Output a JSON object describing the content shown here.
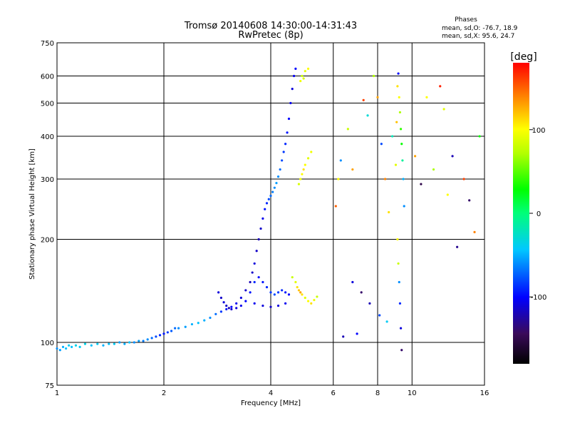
{
  "chart_data": {
    "type": "scatter",
    "title": "Tromsø 20140608 14:30:00-14:31:43",
    "subtitle": "RwPretec (8p)",
    "xlabel": "Frequency [MHz]",
    "ylabel": "Stationary phase Virtual Height [km]",
    "x_scale": "log",
    "y_scale": "log",
    "xlim": [
      1,
      16
    ],
    "ylim": [
      75,
      750
    ],
    "x_ticks": [
      1,
      2,
      4,
      6,
      8,
      10,
      16
    ],
    "y_ticks": [
      75,
      100,
      200,
      300,
      400,
      500,
      600,
      750
    ],
    "grid": true,
    "phases_box": {
      "title": "Phases",
      "line1": "mean, sd,O: -76.7, 18.9",
      "line2": "mean, sd,X:  95.6, 24.7"
    },
    "colorbar": {
      "label": "[deg]",
      "range": [
        -180,
        180
      ],
      "ticks": [
        100,
        0,
        -100
      ],
      "tick_labels": [
        "100",
        "0",
        "-100"
      ]
    },
    "series": [
      {
        "points": [
          [
            1.0,
            96,
            -60
          ],
          [
            1.02,
            95,
            -55
          ],
          [
            1.04,
            97,
            -50
          ],
          [
            1.06,
            96,
            -45
          ],
          [
            1.08,
            98,
            -40
          ],
          [
            1.1,
            97,
            -45
          ],
          [
            1.13,
            98,
            -35
          ],
          [
            1.16,
            97,
            -40
          ],
          [
            1.2,
            99,
            -35
          ],
          [
            1.25,
            98,
            -45
          ],
          [
            1.3,
            99,
            -40
          ],
          [
            1.35,
            98,
            -50
          ],
          [
            1.4,
            99,
            -45
          ],
          [
            1.45,
            99,
            -40
          ],
          [
            1.5,
            100,
            -55
          ],
          [
            1.55,
            99,
            -50
          ],
          [
            1.6,
            100,
            -45
          ],
          [
            1.65,
            100,
            -60
          ],
          [
            1.7,
            101,
            -55
          ],
          [
            1.75,
            101,
            -65
          ],
          [
            1.8,
            102,
            -60
          ],
          [
            1.85,
            103,
            -70
          ],
          [
            1.9,
            104,
            -80
          ],
          [
            1.95,
            105,
            -90
          ],
          [
            2.0,
            106,
            -95
          ],
          [
            2.05,
            107,
            -85
          ],
          [
            2.1,
            108,
            -75
          ],
          [
            2.15,
            110,
            -70
          ],
          [
            2.2,
            110,
            -60
          ],
          [
            2.3,
            111,
            -55
          ],
          [
            2.4,
            113,
            -50
          ],
          [
            2.5,
            114,
            -45
          ],
          [
            2.6,
            116,
            -50
          ],
          [
            2.7,
            118,
            -60
          ],
          [
            2.8,
            121,
            -70
          ],
          [
            2.9,
            123,
            -85
          ],
          [
            3.0,
            125,
            -95
          ],
          [
            3.1,
            127,
            -100
          ],
          [
            3.2,
            130,
            -105
          ],
          [
            3.3,
            135,
            -110
          ],
          [
            3.4,
            142,
            -115
          ],
          [
            3.5,
            150,
            -120
          ],
          [
            3.55,
            160,
            -115
          ],
          [
            3.6,
            170,
            -110
          ],
          [
            3.65,
            185,
            -115
          ],
          [
            3.7,
            200,
            -120
          ],
          [
            3.75,
            215,
            -115
          ],
          [
            3.8,
            230,
            -105
          ],
          [
            3.85,
            245,
            -95
          ],
          [
            3.9,
            255,
            -90
          ],
          [
            3.95,
            262,
            -80
          ],
          [
            4.0,
            268,
            -70
          ],
          [
            4.05,
            275,
            -65
          ],
          [
            4.1,
            283,
            -60
          ],
          [
            4.15,
            292,
            -55
          ],
          [
            4.2,
            305,
            -60
          ],
          [
            4.25,
            320,
            -70
          ],
          [
            4.3,
            340,
            -80
          ],
          [
            4.35,
            360,
            -85
          ],
          [
            4.4,
            380,
            -90
          ],
          [
            4.45,
            410,
            -95
          ],
          [
            4.5,
            450,
            -100
          ],
          [
            4.55,
            500,
            -105
          ],
          [
            4.6,
            550,
            -110
          ],
          [
            4.65,
            600,
            -105
          ],
          [
            4.7,
            630,
            -100
          ]
        ]
      },
      {
        "points": [
          [
            2.85,
            140,
            -110
          ],
          [
            2.9,
            135,
            -115
          ],
          [
            2.95,
            131,
            -110
          ],
          [
            3.0,
            128,
            -115
          ],
          [
            3.05,
            126,
            -120
          ],
          [
            3.1,
            125,
            -115
          ],
          [
            3.2,
            126,
            -110
          ],
          [
            3.3,
            128,
            -105
          ],
          [
            3.4,
            132,
            -100
          ],
          [
            3.5,
            140,
            -95
          ],
          [
            3.6,
            150,
            -90
          ],
          [
            3.7,
            155,
            -100
          ],
          [
            3.8,
            150,
            -95
          ],
          [
            3.9,
            145,
            -90
          ],
          [
            4.0,
            140,
            -85
          ],
          [
            4.1,
            138,
            -80
          ],
          [
            4.2,
            140,
            -85
          ],
          [
            4.3,
            142,
            -90
          ],
          [
            4.4,
            140,
            -95
          ],
          [
            4.5,
            138,
            -100
          ],
          [
            3.6,
            130,
            -105
          ],
          [
            3.8,
            128,
            -110
          ],
          [
            4.0,
            127,
            -115
          ],
          [
            4.2,
            128,
            -110
          ],
          [
            4.4,
            130,
            -105
          ]
        ]
      },
      {
        "points": [
          [
            4.6,
            155,
            80
          ],
          [
            4.7,
            150,
            90
          ],
          [
            4.75,
            145,
            110
          ],
          [
            4.8,
            142,
            120
          ],
          [
            4.85,
            140,
            130
          ],
          [
            4.9,
            138,
            110
          ],
          [
            5.0,
            135,
            90
          ],
          [
            5.1,
            132,
            100
          ],
          [
            5.2,
            130,
            110
          ],
          [
            5.3,
            133,
            95
          ],
          [
            5.4,
            136,
            80
          ],
          [
            4.8,
            290,
            85
          ],
          [
            4.85,
            300,
            95
          ],
          [
            4.9,
            310,
            100
          ],
          [
            4.95,
            320,
            110
          ],
          [
            5.0,
            330,
            100
          ],
          [
            5.1,
            345,
            90
          ],
          [
            5.2,
            360,
            95
          ],
          [
            4.9,
            600,
            80
          ],
          [
            5.0,
            620,
            90
          ],
          [
            5.1,
            630,
            100
          ],
          [
            4.85,
            580,
            95
          ],
          [
            4.95,
            590,
            85
          ]
        ]
      },
      {
        "points": [
          [
            6.1,
            250,
            150
          ],
          [
            6.2,
            300,
            100
          ],
          [
            6.3,
            340,
            -60
          ],
          [
            6.4,
            104,
            -120
          ],
          [
            6.6,
            420,
            80
          ],
          [
            6.8,
            320,
            130
          ],
          [
            7.0,
            106,
            -100
          ],
          [
            7.3,
            510,
            160
          ],
          [
            7.5,
            460,
            -30
          ],
          [
            7.8,
            600,
            70
          ],
          [
            8.0,
            520,
            130
          ],
          [
            8.2,
            380,
            -80
          ],
          [
            8.4,
            300,
            140
          ],
          [
            8.6,
            240,
            110
          ],
          [
            8.8,
            400,
            -20
          ],
          [
            9.0,
            330,
            90
          ],
          [
            9.05,
            440,
            120
          ],
          [
            9.1,
            560,
            110
          ],
          [
            9.15,
            610,
            -100
          ],
          [
            9.2,
            520,
            100
          ],
          [
            9.25,
            470,
            70
          ],
          [
            9.3,
            420,
            40
          ],
          [
            9.35,
            380,
            30
          ],
          [
            9.4,
            340,
            -10
          ],
          [
            9.45,
            300,
            -50
          ],
          [
            9.5,
            250,
            -60
          ],
          [
            9.1,
            200,
            100
          ],
          [
            9.15,
            170,
            80
          ],
          [
            9.2,
            150,
            -60
          ],
          [
            9.25,
            130,
            -90
          ],
          [
            9.3,
            110,
            -110
          ],
          [
            9.35,
            95,
            -140
          ],
          [
            10.2,
            350,
            130
          ],
          [
            10.6,
            290,
            -150
          ],
          [
            11.0,
            520,
            100
          ],
          [
            11.5,
            320,
            70
          ],
          [
            12.0,
            560,
            170
          ],
          [
            12.3,
            480,
            90
          ],
          [
            12.6,
            270,
            100
          ],
          [
            13.0,
            350,
            -120
          ],
          [
            13.4,
            190,
            -130
          ],
          [
            14.0,
            300,
            160
          ],
          [
            14.5,
            260,
            -140
          ],
          [
            15.0,
            210,
            140
          ],
          [
            15.5,
            400,
            30
          ],
          [
            6.8,
            150,
            -110
          ],
          [
            7.2,
            140,
            -140
          ],
          [
            7.6,
            130,
            -120
          ],
          [
            8.1,
            120,
            -80
          ],
          [
            8.5,
            115,
            -40
          ]
        ]
      }
    ]
  }
}
